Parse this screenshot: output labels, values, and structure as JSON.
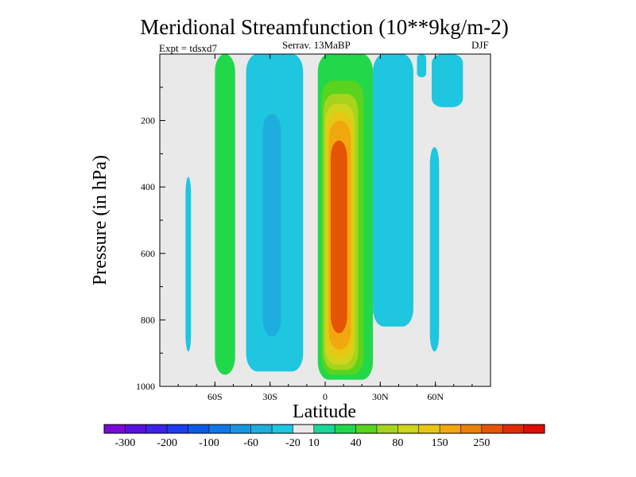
{
  "chart_data": {
    "type": "heatmap",
    "title": "Meridional Streamfunction (10**9kg/m-2)",
    "subtitle_left": "Expt = tdsxd7",
    "subtitle_center": "Serrav.   13MaBP",
    "subtitle_right": "DJF",
    "xlabel": "Latitude",
    "ylabel": "Pressure (in hPa)",
    "xlim": [
      -90,
      90
    ],
    "ylim": [
      1000,
      0
    ],
    "xticks": [
      {
        "value": -60,
        "label": "60S"
      },
      {
        "value": -30,
        "label": "30S"
      },
      {
        "value": 0,
        "label": "0"
      },
      {
        "value": 30,
        "label": "30N"
      },
      {
        "value": 60,
        "label": "60N"
      }
    ],
    "yticks": [
      {
        "value": 200,
        "label": "200"
      },
      {
        "value": 400,
        "label": "400"
      },
      {
        "value": 600,
        "label": "600"
      },
      {
        "value": 800,
        "label": "800"
      },
      {
        "value": 1000,
        "label": "1000"
      }
    ],
    "colorbar": {
      "colors": [
        "#7a0ad8",
        "#5a10e0",
        "#3b22e8",
        "#1c3cf0",
        "#0a5ae6",
        "#0f78e6",
        "#1896e0",
        "#1eaedc",
        "#1ec6e0",
        "#e9e9e9",
        "#1ad69a",
        "#21d84a",
        "#58d41e",
        "#a6d41c",
        "#cfd41c",
        "#e6c814",
        "#f0a80e",
        "#ea8008",
        "#e65406",
        "#e22a04",
        "#de0c02"
      ],
      "ticks": [
        "-300",
        "-200",
        "-100",
        "-60",
        "-20",
        "10",
        "40",
        "80",
        "150",
        "250"
      ]
    },
    "fields": [
      {
        "level": "cell-outer",
        "sign": "positive",
        "band": "10-40",
        "lat_range": [
          -4,
          26
        ],
        "p_range": [
          0,
          980
        ]
      },
      {
        "level": "cell-l2",
        "sign": "positive",
        "band": "40-60",
        "lat_range": [
          -2,
          21
        ],
        "p_range": [
          80,
          965
        ]
      },
      {
        "level": "cell-l3",
        "sign": "positive",
        "band": "60-80",
        "lat_range": [
          -1,
          18
        ],
        "p_range": [
          120,
          950
        ]
      },
      {
        "level": "cell-l4",
        "sign": "positive",
        "band": "80-100",
        "lat_range": [
          0,
          16
        ],
        "p_range": [
          150,
          935
        ]
      },
      {
        "level": "cell-l5",
        "sign": "positive",
        "band": "100-150",
        "lat_range": [
          1,
          15
        ],
        "p_range": [
          175,
          915
        ]
      },
      {
        "level": "cell-l6",
        "sign": "positive",
        "band": "150-200",
        "lat_range": [
          2,
          14
        ],
        "p_range": [
          200,
          890
        ]
      },
      {
        "level": "cell-core",
        "sign": "positive",
        "band": "200-250",
        "lat_range": [
          3,
          12
        ],
        "p_range": [
          260,
          840
        ]
      },
      {
        "level": "southern-band",
        "sign": "positive",
        "band": "10-40",
        "lat_range": [
          -60,
          -49
        ],
        "p_range": [
          0,
          965
        ]
      },
      {
        "level": "sh-negative",
        "sign": "negative",
        "band": "-20-0",
        "lat_range": [
          -43,
          -12
        ],
        "p_range": [
          0,
          955
        ]
      },
      {
        "level": "sh-negative-core",
        "sign": "negative",
        "band": "-40-20",
        "lat_range": [
          -34,
          -24
        ],
        "p_range": [
          180,
          850
        ]
      },
      {
        "level": "sh-far-strip",
        "sign": "negative",
        "band": "-20-0",
        "lat_range": [
          -76,
          -73
        ],
        "p_range": [
          370,
          895
        ]
      },
      {
        "level": "nh-negative",
        "sign": "negative",
        "band": "-20-0",
        "lat_range": [
          26,
          48
        ],
        "p_range": [
          0,
          820
        ]
      },
      {
        "level": "nh-far-strip",
        "sign": "negative",
        "band": "-20-0",
        "lat_range": [
          57,
          62
        ],
        "p_range": [
          280,
          895
        ]
      },
      {
        "level": "nh-top-patch",
        "sign": "negative",
        "band": "-20-0",
        "lat_range": [
          58,
          75
        ],
        "p_range": [
          0,
          160
        ]
      },
      {
        "level": "nh-top-small",
        "sign": "negative",
        "band": "-20-0",
        "lat_range": [
          50,
          55
        ],
        "p_range": [
          0,
          70
        ]
      }
    ]
  }
}
